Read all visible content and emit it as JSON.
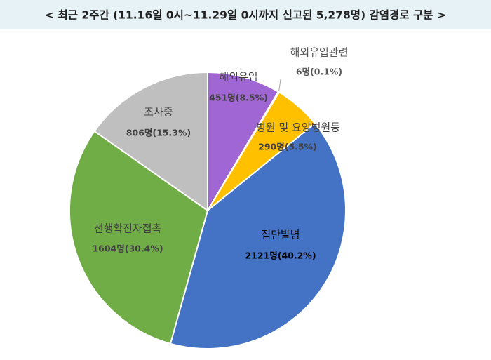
{
  "chart_data": {
    "type": "pie",
    "title": "< 최근 2주간 (11.16일 0시~11.29일 0시까지 신고된 5,278명) 감염경로 구분 >",
    "categories": [
      "해외유입",
      "해외유입관련",
      "병원 및 요양병원등",
      "집단발병",
      "선행확진자접촉",
      "조사중"
    ],
    "values": [
      451,
      6,
      290,
      2121,
      1604,
      806
    ],
    "value_labels": [
      "451명(8.5%)",
      "6명(0.1%)",
      "290명(5.5%)",
      "2121명(40.2%)",
      "1604명(30.4%)",
      "806명(15.3%)"
    ],
    "colors": [
      "#a066d3",
      "#d9d9d9",
      "#ffc000",
      "#4472c4",
      "#70ad47",
      "#bfbfbf"
    ]
  }
}
